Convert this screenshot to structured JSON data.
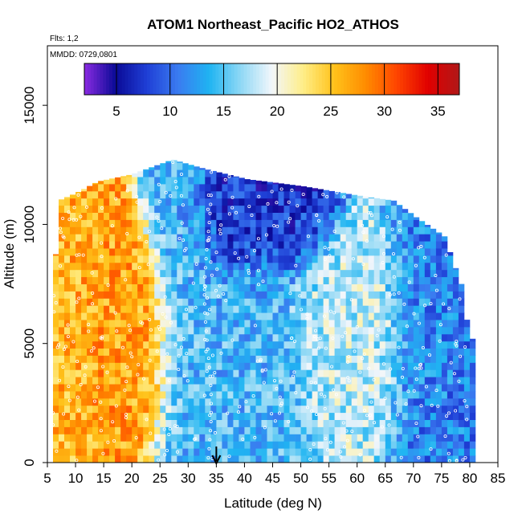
{
  "chart_data": {
    "type": "heatmap",
    "title": "ATOM1 Northeast_Pacific HO2_ATHOS",
    "flights_label": "Flts: 1,2",
    "mmdd_label": "MMDD: 0729,0801",
    "xlabel": "Latitude (deg N)",
    "ylabel": "Altitude (m)",
    "xlim": [
      5,
      85
    ],
    "ylim": [
      0,
      17500
    ],
    "x_ticks": [
      5,
      10,
      15,
      20,
      25,
      30,
      35,
      40,
      45,
      50,
      55,
      60,
      65,
      70,
      75,
      80,
      85
    ],
    "y_ticks": [
      0,
      5000,
      10000,
      15000
    ],
    "colorbar": {
      "range": [
        2,
        37
      ],
      "ticks": [
        5,
        10,
        15,
        20,
        25,
        30,
        35
      ],
      "colors": [
        "#8a2be2",
        "#0a0a96",
        "#1f3fd6",
        "#3a7bf0",
        "#1fb4f2",
        "#8fd8f5",
        "#f2f6fb",
        "#ffee88",
        "#ffc21a",
        "#ff8c00",
        "#ff4400",
        "#e00000",
        "#b01818"
      ]
    },
    "marker_latitude": 35,
    "altitude_profile": [
      {
        "lat": 6,
        "top": 6500
      },
      {
        "lat": 7,
        "top": 11000
      },
      {
        "lat": 10,
        "top": 11300
      },
      {
        "lat": 14,
        "top": 11800
      },
      {
        "lat": 20,
        "top": 12100
      },
      {
        "lat": 27,
        "top": 12700
      },
      {
        "lat": 33,
        "top": 12300
      },
      {
        "lat": 40,
        "top": 11900
      },
      {
        "lat": 50,
        "top": 11600
      },
      {
        "lat": 60,
        "top": 11200
      },
      {
        "lat": 66,
        "top": 11000
      },
      {
        "lat": 70,
        "top": 10300
      },
      {
        "lat": 75,
        "top": 9500
      },
      {
        "lat": 78,
        "top": 7500
      },
      {
        "lat": 79,
        "top": 6000
      },
      {
        "lat": 80,
        "top": 5200
      }
    ],
    "field_summary": [
      {
        "lat_range": [
          5,
          12
        ],
        "alt_range": [
          500,
          8500
        ],
        "approx_value": 26
      },
      {
        "lat_range": [
          12,
          26
        ],
        "alt_range": [
          2000,
          8000
        ],
        "approx_value": 27
      },
      {
        "lat_range": [
          26,
          33
        ],
        "alt_range": [
          0,
          12700
        ],
        "approx_value": 14
      },
      {
        "lat_range": [
          33,
          50
        ],
        "alt_range": [
          8500,
          12000
        ],
        "approx_value": 7
      },
      {
        "lat_range": [
          33,
          50
        ],
        "alt_range": [
          0,
          8500
        ],
        "approx_value": 14
      },
      {
        "lat_range": [
          50,
          68
        ],
        "alt_range": [
          2000,
          8000
        ],
        "approx_value": 18
      },
      {
        "lat_range": [
          68,
          80
        ],
        "alt_range": [
          0,
          9500
        ],
        "approx_value": 11
      }
    ]
  }
}
